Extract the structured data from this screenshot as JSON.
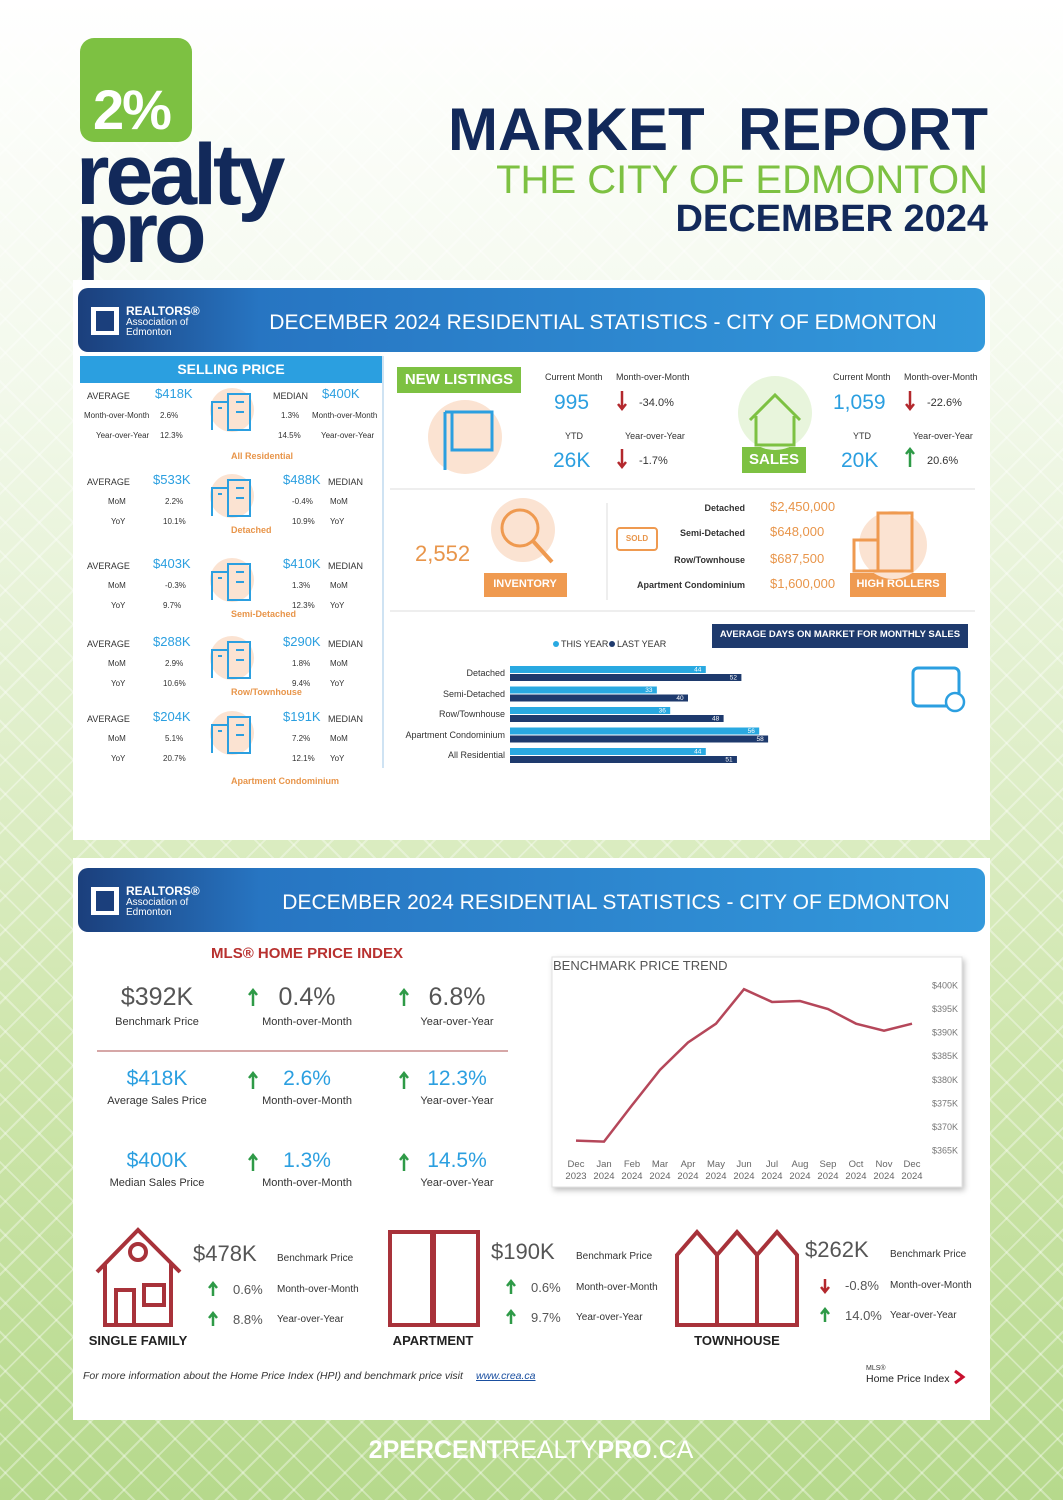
{
  "header": {
    "logo": {
      "badge": "2%",
      "line1": "realty",
      "line2": "pro"
    },
    "title": "MARKET  REPORT",
    "subtitle": "THE CITY OF EDMONTON",
    "date": "DECEMBER 2024"
  },
  "banner": {
    "org": "REALTORS®",
    "org_sub1": "Association of",
    "org_sub2": "Edmonton",
    "title": "DECEMBER 2024 RESIDENTIAL STATISTICS - CITY OF EDMONTON"
  },
  "selling_price": {
    "title": "SELLING PRICE",
    "groups": [
      {
        "name": "All Residential",
        "average_label": "AVERAGE",
        "median_label": "MEDIAN",
        "mom_label": "Month-over-Month",
        "yoy_label": "Year-over-Year",
        "average": "$418K",
        "median": "$400K",
        "average_mom": "2.6%",
        "median_mom": "1.3%",
        "average_yoy": "12.3%",
        "median_yoy": "14.5%"
      },
      {
        "name": "Detached",
        "average_label": "AVERAGE",
        "median_label": "MEDIAN",
        "mom_label": "MoM",
        "yoy_label": "YoY",
        "average": "$533K",
        "median": "$488K",
        "average_mom": "2.2%",
        "median_mom": "-0.4%",
        "average_yoy": "10.1%",
        "median_yoy": "10.9%"
      },
      {
        "name": "Semi-Detached",
        "average_label": "AVERAGE",
        "median_label": "MEDIAN",
        "mom_label": "MoM",
        "yoy_label": "YoY",
        "average": "$403K",
        "median": "$410K",
        "average_mom": "-0.3%",
        "median_mom": "1.3%",
        "average_yoy": "9.7%",
        "median_yoy": "12.3%"
      },
      {
        "name": "Row/Townhouse",
        "average_label": "AVERAGE",
        "median_label": "MEDIAN",
        "mom_label": "MoM",
        "yoy_label": "YoY",
        "average": "$288K",
        "median": "$290K",
        "average_mom": "2.9%",
        "median_mom": "1.8%",
        "average_yoy": "10.6%",
        "median_yoy": "9.4%"
      },
      {
        "name": "Apartment Condominium",
        "average_label": "AVERAGE",
        "median_label": "MEDIAN",
        "mom_label": "MoM",
        "yoy_label": "YoY",
        "average": "$204K",
        "median": "$191K",
        "average_mom": "5.1%",
        "median_mom": "7.2%",
        "average_yoy": "20.7%",
        "median_yoy": "12.1%"
      }
    ]
  },
  "new_listings": {
    "title": "NEW LISTINGS",
    "current_label": "Current Month",
    "current": "995",
    "mom_label": "Month-over-Month",
    "mom": "-34.0%",
    "ytd_label": "YTD",
    "ytd": "26K",
    "yoy_label": "Year-over-Year",
    "yoy": "-1.7%"
  },
  "sales": {
    "title": "SALES",
    "current_label": "Current Month",
    "current": "1,059",
    "mom_label": "Month-over-Month",
    "mom": "-22.6%",
    "ytd_label": "YTD",
    "ytd": "20K",
    "yoy_label": "Year-over-Year",
    "yoy": "20.6%"
  },
  "inventory": {
    "value": "2,552",
    "title": "INVENTORY"
  },
  "high_rollers": {
    "sign": "SOLD",
    "title": "HIGH ROLLERS",
    "rows": [
      {
        "type": "Detached",
        "price": "$2,450,000"
      },
      {
        "type": "Semi-Detached",
        "price": "$648,000"
      },
      {
        "type": "Row/Townhouse",
        "price": "$687,500"
      },
      {
        "type": "Apartment Condominium",
        "price": "$1,600,000"
      }
    ]
  },
  "days_on_market": {
    "type": "bar",
    "title": "AVERAGE DAYS ON MARKET FOR MONTHLY SALES",
    "categories": [
      "Detached",
      "Semi-Detached",
      "Row/Townhouse",
      "Apartment Condominium",
      "All Residential"
    ],
    "series": [
      {
        "name": "THIS YEAR",
        "color": "#29a9e1",
        "values": [
          44,
          33,
          36,
          56,
          44
        ]
      },
      {
        "name": "LAST YEAR",
        "color": "#1e3a6d",
        "values": [
          52,
          40,
          48,
          58,
          51
        ]
      }
    ]
  },
  "hpi": {
    "title": "MLS® HOME PRICE INDEX",
    "rows": [
      {
        "value": "$392K",
        "label": "Benchmark Price",
        "mom": "0.4%",
        "mom_label": "Month-over-Month",
        "yoy": "6.8%",
        "yoy_label": "Year-over-Year"
      },
      {
        "value": "$418K",
        "label": "Average Sales Price",
        "mom": "2.6%",
        "mom_label": "Month-over-Month",
        "yoy": "12.3%",
        "yoy_label": "Year-over-Year"
      },
      {
        "value": "$400K",
        "label": "Median Sales Price",
        "mom": "1.3%",
        "mom_label": "Month-over-Month",
        "yoy": "14.5%",
        "yoy_label": "Year-over-Year"
      }
    ]
  },
  "price_trend": {
    "type": "line",
    "title": "BENCHMARK PRICE TREND",
    "categories": [
      [
        "Dec",
        "2023"
      ],
      [
        "Jan",
        "2024"
      ],
      [
        "Feb",
        "2024"
      ],
      [
        "Mar",
        "2024"
      ],
      [
        "Apr",
        "2024"
      ],
      [
        "May",
        "2024"
      ],
      [
        "Jun",
        "2024"
      ],
      [
        "Jul",
        "2024"
      ],
      [
        "Aug",
        "2024"
      ],
      [
        "Sep",
        "2024"
      ],
      [
        "Oct",
        "2024"
      ],
      [
        "Nov",
        "2024"
      ],
      [
        "Dec",
        "2024"
      ]
    ],
    "values": [
      367100,
      366900,
      374600,
      382100,
      387900,
      391900,
      399200,
      396500,
      396700,
      395000,
      391900,
      390400,
      391900
    ],
    "color": "#b5475a",
    "ylim": [
      363000,
      402000
    ],
    "yticks": [
      {
        "value": 365000,
        "label": "$365K"
      },
      {
        "value": 370000,
        "label": "$370K"
      },
      {
        "value": 375000,
        "label": "$375K"
      },
      {
        "value": 380000,
        "label": "$380K"
      },
      {
        "value": 385000,
        "label": "$385K"
      },
      {
        "value": 390000,
        "label": "$390K"
      },
      {
        "value": 395000,
        "label": "$395K"
      },
      {
        "value": 400000,
        "label": "$400K"
      }
    ]
  },
  "property_types": [
    {
      "name": "SINGLE FAMILY",
      "price": "$478K",
      "price_label": "Benchmark Price",
      "mom": "0.6%",
      "mom_label": "Month-over-Month",
      "yoy": "8.8%",
      "yoy_label": "Year-over-Year"
    },
    {
      "name": "APARTMENT",
      "price": "$190K",
      "price_label": "Benchmark Price",
      "mom": "0.6%",
      "mom_label": "Month-over-Month",
      "yoy": "9.7%",
      "yoy_label": "Year-over-Year"
    },
    {
      "name": "TOWNHOUSE",
      "price": "$262K",
      "price_label": "Benchmark Price",
      "mom": "-0.8%",
      "mom_label": "Month-over-Month",
      "yoy": "14.0%",
      "yoy_label": "Year-over-Year"
    }
  ],
  "footer": {
    "note": "For more information about the Home Price Index (HPI) and benchmark price visit",
    "link": "www.crea.ca",
    "mls_logo": [
      "MLS®",
      "Home Price Index"
    ],
    "website": [
      "2PERCENT",
      "REALTY",
      "PRO",
      ".CA"
    ]
  }
}
